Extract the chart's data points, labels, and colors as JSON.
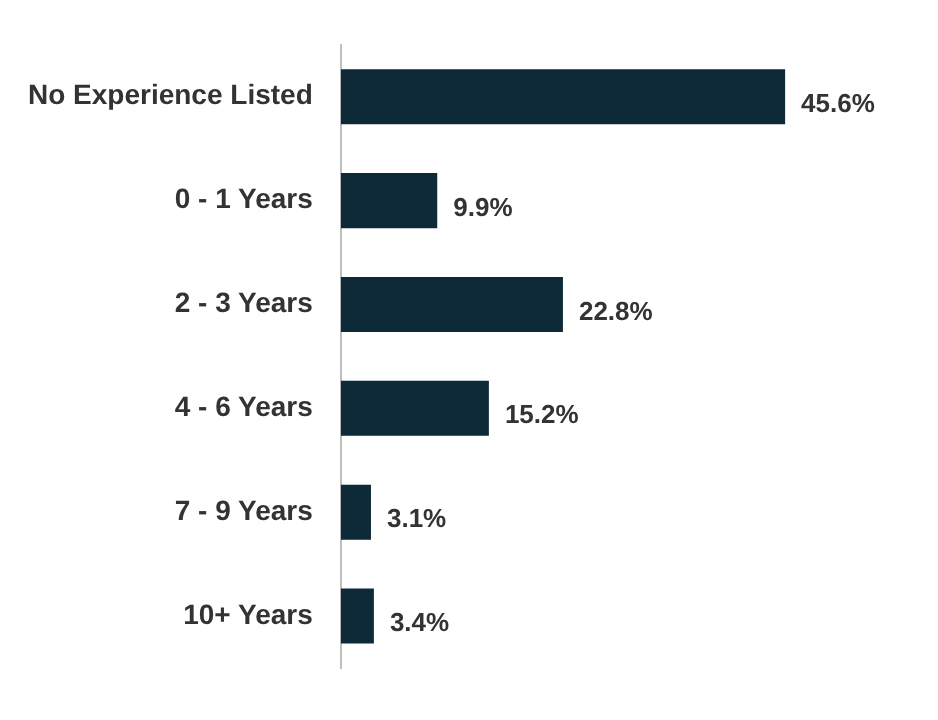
{
  "chart_data": {
    "type": "bar",
    "orientation": "horizontal",
    "categories": [
      "No Experience Listed",
      "0 - 1 Years",
      "2 - 3 Years",
      "4 - 6 Years",
      "7 - 9 Years",
      "10+ Years"
    ],
    "values": [
      45.6,
      9.9,
      22.8,
      15.2,
      3.1,
      3.4
    ],
    "value_labels": [
      "45.6%",
      "9.9%",
      "22.8%",
      "15.2%",
      "3.1%",
      "3.4%"
    ],
    "color": "#0e2937",
    "tick_labels": "y",
    "grid": false,
    "legend": false
  }
}
